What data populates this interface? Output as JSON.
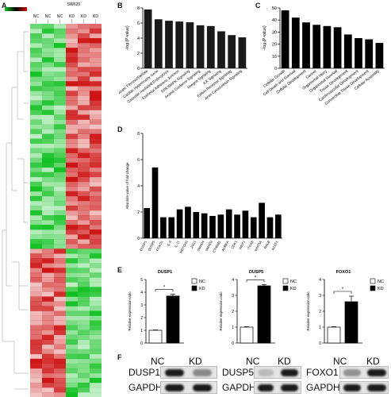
{
  "panels": {
    "a": "A",
    "b": "B",
    "c": "C",
    "d": "D",
    "e": "E",
    "f": "F"
  },
  "heatmap": {
    "top_label": "SW620",
    "columns": [
      "NC",
      "NC",
      "NC",
      "KD",
      "KD",
      "KD"
    ],
    "colors": {
      "high": "#cc1010",
      "low": "#10c020",
      "mid": "#000000"
    }
  },
  "chart_b": {
    "type": "bar",
    "ylabel": "−log (P-value)",
    "ylim": [
      0,
      8
    ],
    "yticks": [
      0,
      2,
      4,
      6,
      8
    ],
    "categories": [
      "Hepatic Fibrosis/Stellate",
      "Cardiac Hypertrophy Gene",
      "Caveolar-mediated Endocytosis",
      "Epithelial Adherens Junction",
      "ERK/MAPK Signaling",
      "Axonal Guidance Signaling",
      "Integrin Signaling",
      "ILK Signaling",
      "Ephrin Receptor Signaling",
      "Actin Cytoskeleton Signaling"
    ],
    "values": [
      7.8,
      6.5,
      6.3,
      6.2,
      6.1,
      5.7,
      5.6,
      4.9,
      4.4,
      4.1
    ]
  },
  "chart_c": {
    "type": "bar",
    "ylabel": "−log (P-value)",
    "ylim": [
      0,
      50
    ],
    "yticks": [
      0,
      10,
      20,
      30,
      40,
      50
    ],
    "categories": [
      "Cellular Growth",
      "Cell Death and Survival",
      "Cellular Development",
      "Cancer",
      "Organismal Injury",
      "Organismal Survival",
      "Tissue Development",
      "Cardiovascular Development",
      "Connective Tissue Development",
      "Cellular Assembly"
    ],
    "values": [
      48,
      42,
      38,
      36,
      35,
      34,
      28,
      25,
      24,
      21
    ]
  },
  "chart_d": {
    "type": "bar",
    "ylabel": "Absolute value of fold change",
    "ylim": [
      0,
      8
    ],
    "yticks": [
      0,
      2,
      4,
      6,
      8
    ],
    "categories": [
      "DUSP1",
      "DUSP5",
      "FOXO1",
      "IL-6",
      "IL-11",
      "NOTCH2",
      "JAG1",
      "SMAD4",
      "SMAD3",
      "CTNNB1",
      "AURKA",
      "CDK1",
      "WNT1",
      "ITGA6",
      "WNT5A",
      "RALB",
      "ACAT1"
    ],
    "values": [
      2.3,
      5.4,
      1.6,
      1.6,
      2.2,
      2.4,
      2.0,
      1.9,
      1.7,
      1.8,
      2.2,
      1.8,
      2.1,
      1.6,
      2.7,
      1.6,
      1.8
    ]
  },
  "chart_e": [
    {
      "type": "bar",
      "title": "DUSP1",
      "ylabel": "Relative expression ratio",
      "ylim": [
        0,
        5
      ],
      "yticks": [
        0,
        1,
        2,
        3,
        4,
        5
      ],
      "categories": [
        "NC",
        "KD"
      ],
      "values": [
        1.0,
        3.7
      ],
      "errors": [
        0.03,
        0.15
      ],
      "sig": "*"
    },
    {
      "type": "bar",
      "title": "DUSP5",
      "ylabel": "Relative expression ratio",
      "ylim": [
        0,
        4
      ],
      "yticks": [
        0,
        1,
        2,
        3,
        4
      ],
      "categories": [
        "NC",
        "KD"
      ],
      "values": [
        1.0,
        3.6
      ],
      "errors": [
        0.03,
        0.08
      ],
      "sig": "*"
    },
    {
      "type": "bar",
      "title": "FOXO1",
      "ylabel": "Relative expression ratio",
      "ylim": [
        0,
        4
      ],
      "yticks": [
        0,
        1,
        2,
        3,
        4
      ],
      "categories": [
        "NC",
        "KD"
      ],
      "values": [
        1.0,
        2.6
      ],
      "errors": [
        0.03,
        0.35
      ],
      "sig": "*"
    }
  ],
  "chart_e_colors": {
    "NC": "#ffffff",
    "KD": "#000000"
  },
  "blots": [
    {
      "protein": "DUSP1",
      "loading": "GAPDH",
      "nc": "NC",
      "kd": "KD",
      "nc_level": 1.0,
      "kd_level": 0.5
    },
    {
      "protein": "DUSP5",
      "loading": "GAPDH",
      "nc": "NC",
      "kd": "KD",
      "nc_level": 0.25,
      "kd_level": 1.0
    },
    {
      "protein": "FOXO1",
      "loading": "GAPDH",
      "nc": "NC",
      "kd": "KD",
      "nc_level": 0.45,
      "kd_level": 1.0
    }
  ]
}
